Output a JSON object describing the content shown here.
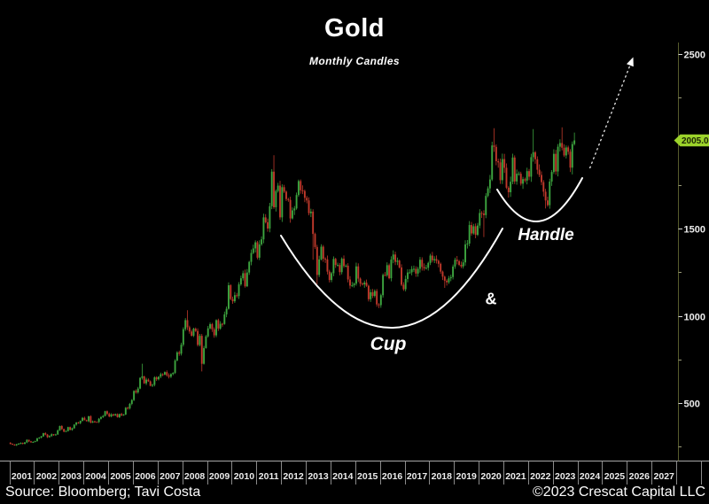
{
  "annotations": {
    "cup_label": "Cup",
    "ampersand": "&",
    "handle_label": "Handle"
  },
  "footer": {
    "source": "Source: Bloomberg; Tavi Costa",
    "copyright": "©2023 Crescat Capital LLC"
  },
  "price_tag": {
    "value": "2005.07",
    "bg": "#9cd32b",
    "fg": "#1b2505"
  },
  "colors": {
    "up": "#3da53f",
    "down": "#c0392b",
    "y_axis_line": "#565b2c",
    "x_axis_line": "#a8a8a8",
    "x_separator": "#8a8a8a",
    "tick": "#d8d8d8",
    "minor_tick": "#9a9a7a",
    "axis_label": "#ececec",
    "annotation": "#ffffff"
  },
  "chart_data": {
    "type": "candlestick",
    "title": "Gold",
    "subtitle": "Monthly Candles",
    "x_years": [
      2001,
      2002,
      2003,
      2004,
      2005,
      2006,
      2007,
      2008,
      2009,
      2010,
      2011,
      2012,
      2013,
      2014,
      2015,
      2016,
      2017,
      2018,
      2019,
      2020,
      2021,
      2022,
      2023,
      2024,
      2025,
      2026,
      2027
    ],
    "y_axis": {
      "major_ticks": [
        {
          "value": 2500,
          "label": "2500"
        },
        {
          "value": 1500,
          "label": "1500"
        },
        {
          "value": 1000,
          "label": "1000"
        },
        {
          "value": 500,
          "label": "500"
        }
      ],
      "minor_tick_values": [
        2250,
        1750,
        1250,
        750,
        250
      ]
    },
    "last_price": 2005.07,
    "prev_close": 272,
    "series": [
      {
        "year": 2001,
        "closes": [
          266,
          262,
          258,
          264,
          267,
          271,
          266,
          274,
          289,
          280,
          275,
          277
        ]
      },
      {
        "year": 2002,
        "closes": [
          282,
          297,
          302,
          309,
          327,
          319,
          304,
          311,
          321,
          317,
          320,
          343
        ]
      },
      {
        "year": 2003,
        "closes": [
          368,
          351,
          336,
          339,
          362,
          346,
          355,
          376,
          388,
          385,
          398,
          415
        ]
      },
      {
        "year": 2004,
        "closes": [
          402,
          396,
          424,
          388,
          394,
          392,
          391,
          410,
          419,
          426,
          453,
          438
        ]
      },
      {
        "year": 2005,
        "closes": [
          423,
          435,
          429,
          436,
          419,
          437,
          429,
          434,
          473,
          470,
          495,
          517
        ]
      },
      {
        "year": 2006,
        "closes": [
          569,
          561,
          583,
          644,
          653,
          613,
          634,
          624,
          599,
          604,
          647,
          636
        ]
      },
      {
        "year": 2007,
        "closes": [
          651,
          665,
          663,
          677,
          659,
          651,
          666,
          673,
          743,
          790,
          783,
          834
        ]
      },
      {
        "year": 2008,
        "closes": [
          923,
          975,
          934,
          910,
          886,
          926,
          913,
          833,
          885,
          725,
          815,
          882
        ]
      },
      {
        "year": 2009,
        "closes": [
          928,
          952,
          923,
          888,
          975,
          927,
          954,
          953,
          1008,
          1040,
          1175,
          1096
        ]
      },
      {
        "year": 2010,
        "closes": [
          1083,
          1118,
          1113,
          1180,
          1215,
          1244,
          1169,
          1248,
          1309,
          1360,
          1386,
          1421
        ]
      },
      {
        "year": 2011,
        "closes": [
          1333,
          1409,
          1438,
          1564,
          1536,
          1500,
          1628,
          1826,
          1622,
          1715,
          1746,
          1564
        ]
      },
      {
        "year": 2012,
        "closes": [
          1737,
          1711,
          1669,
          1664,
          1558,
          1604,
          1615,
          1692,
          1772,
          1719,
          1715,
          1676
        ]
      },
      {
        "year": 2013,
        "closes": [
          1661,
          1588,
          1597,
          1469,
          1394,
          1234,
          1323,
          1396,
          1327,
          1323,
          1253,
          1205
        ]
      },
      {
        "year": 2014,
        "closes": [
          1244,
          1326,
          1291,
          1291,
          1250,
          1327,
          1285,
          1287,
          1208,
          1173,
          1175,
          1184
        ]
      },
      {
        "year": 2015,
        "closes": [
          1283,
          1213,
          1184,
          1180,
          1190,
          1172,
          1095,
          1135,
          1114,
          1142,
          1065,
          1061
        ]
      },
      {
        "year": 2016,
        "closes": [
          1118,
          1234,
          1232,
          1290,
          1215,
          1322,
          1351,
          1309,
          1316,
          1277,
          1178,
          1152
        ]
      },
      {
        "year": 2017,
        "closes": [
          1211,
          1248,
          1249,
          1268,
          1269,
          1242,
          1269,
          1321,
          1280,
          1271,
          1275,
          1303
        ]
      },
      {
        "year": 2018,
        "closes": [
          1345,
          1318,
          1325,
          1315,
          1298,
          1253,
          1224,
          1201,
          1192,
          1215,
          1222,
          1282
        ]
      },
      {
        "year": 2019,
        "closes": [
          1321,
          1313,
          1292,
          1283,
          1306,
          1409,
          1414,
          1520,
          1472,
          1513,
          1464,
          1517
        ]
      },
      {
        "year": 2020,
        "closes": [
          1589,
          1586,
          1577,
          1687,
          1730,
          1781,
          1976,
          1968,
          1886,
          1879,
          1777,
          1898
        ]
      },
      {
        "year": 2021,
        "closes": [
          1848,
          1734,
          1708,
          1768,
          1907,
          1770,
          1814,
          1814,
          1757,
          1783,
          1775,
          1829
        ]
      },
      {
        "year": 2022,
        "closes": [
          1797,
          1909,
          1937,
          1897,
          1837,
          1807,
          1766,
          1711,
          1661,
          1634,
          1769,
          1824
        ]
      },
      {
        "year": 2023,
        "closes": [
          1928,
          1827,
          1969,
          1990,
          1963,
          1919,
          1965,
          1940,
          1849,
          1984,
          2005.07
        ]
      }
    ],
    "wick_overrides": [
      {
        "year": 2006,
        "month": 5,
        "high": 725
      },
      {
        "year": 2008,
        "month": 3,
        "high": 1032
      },
      {
        "year": 2008,
        "month": 10,
        "low": 681
      },
      {
        "year": 2011,
        "month": 9,
        "high": 1920
      },
      {
        "year": 2013,
        "month": 4,
        "low": 1321
      },
      {
        "year": 2013,
        "month": 6,
        "low": 1180
      },
      {
        "year": 2015,
        "month": 12,
        "low": 1046
      },
      {
        "year": 2016,
        "month": 7,
        "high": 1375
      },
      {
        "year": 2018,
        "month": 8,
        "low": 1160
      },
      {
        "year": 2020,
        "month": 3,
        "low": 1451
      },
      {
        "year": 2020,
        "month": 8,
        "high": 2075
      },
      {
        "year": 2021,
        "month": 3,
        "low": 1677
      },
      {
        "year": 2022,
        "month": 3,
        "high": 2070
      },
      {
        "year": 2022,
        "month": 9,
        "low": 1615
      },
      {
        "year": 2023,
        "month": 5,
        "high": 2080
      },
      {
        "year": 2023,
        "month": 10,
        "low": 1810
      },
      {
        "year": 2023,
        "month": 11,
        "high": 2050
      }
    ]
  }
}
